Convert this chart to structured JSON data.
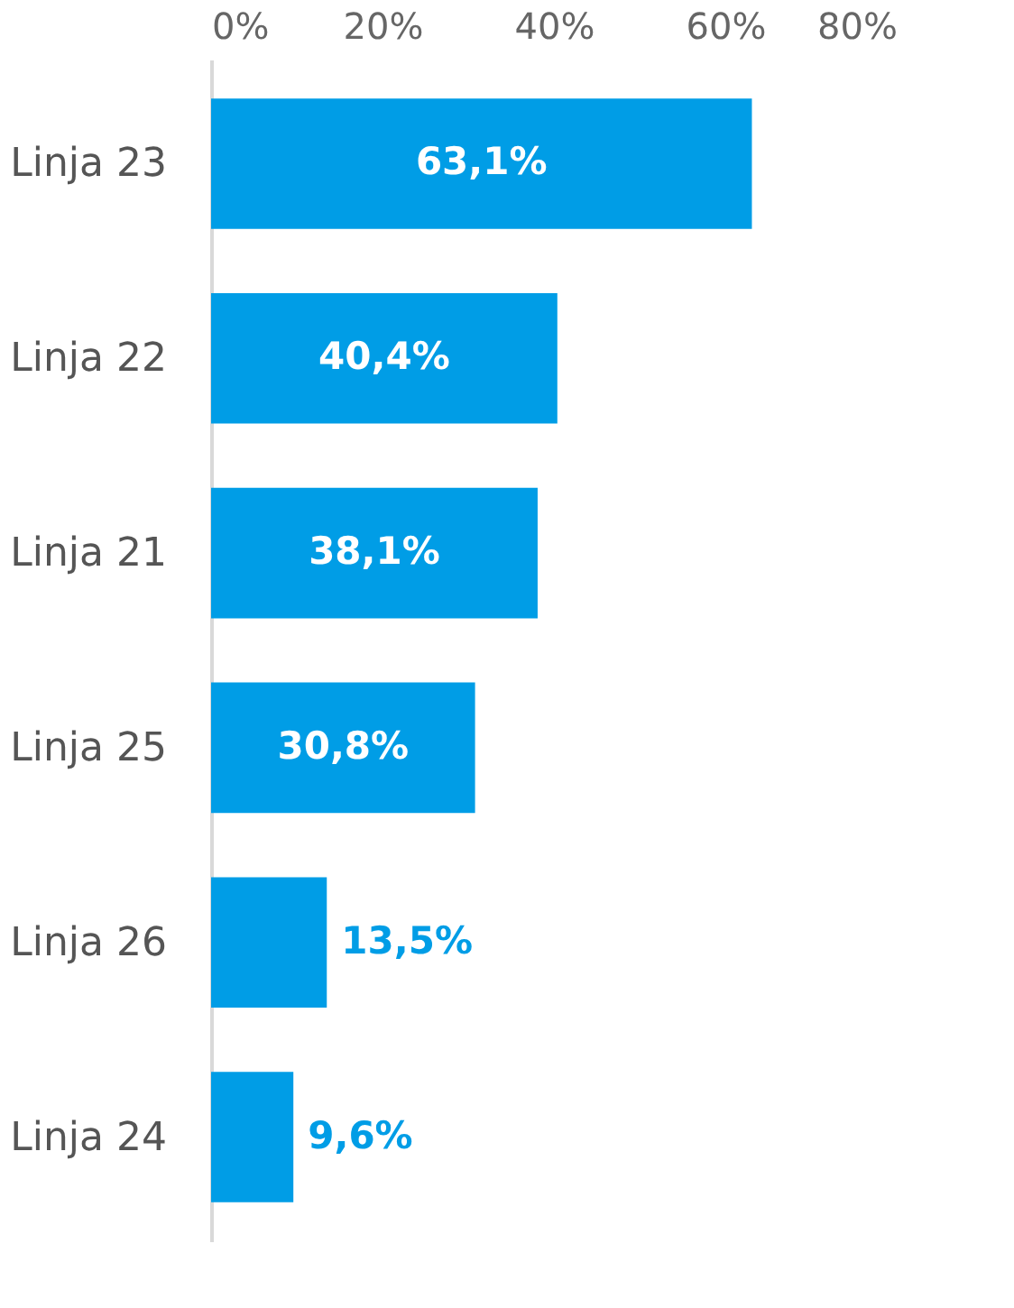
{
  "chart_data": {
    "type": "bar",
    "orientation": "horizontal",
    "categories": [
      "Linja 23",
      "Linja 22",
      "Linja 21",
      "Linja 25",
      "Linja 26",
      "Linja 24"
    ],
    "values": [
      63.1,
      40.4,
      38.1,
      30.8,
      13.5,
      9.6
    ],
    "value_labels": [
      "63,1%",
      "40,4%",
      "38,1%",
      "30,8%",
      "13,5%",
      "9,6%"
    ],
    "color": "#009de6",
    "xlim": [
      0,
      80
    ],
    "xticks": [
      {
        "value": 0,
        "label": "0%"
      },
      {
        "value": 20,
        "label": "20%"
      },
      {
        "value": 40,
        "label": "40%"
      },
      {
        "value": 60,
        "label": "60%"
      },
      {
        "value": 80,
        "label": "80%"
      }
    ],
    "grid": false
  }
}
